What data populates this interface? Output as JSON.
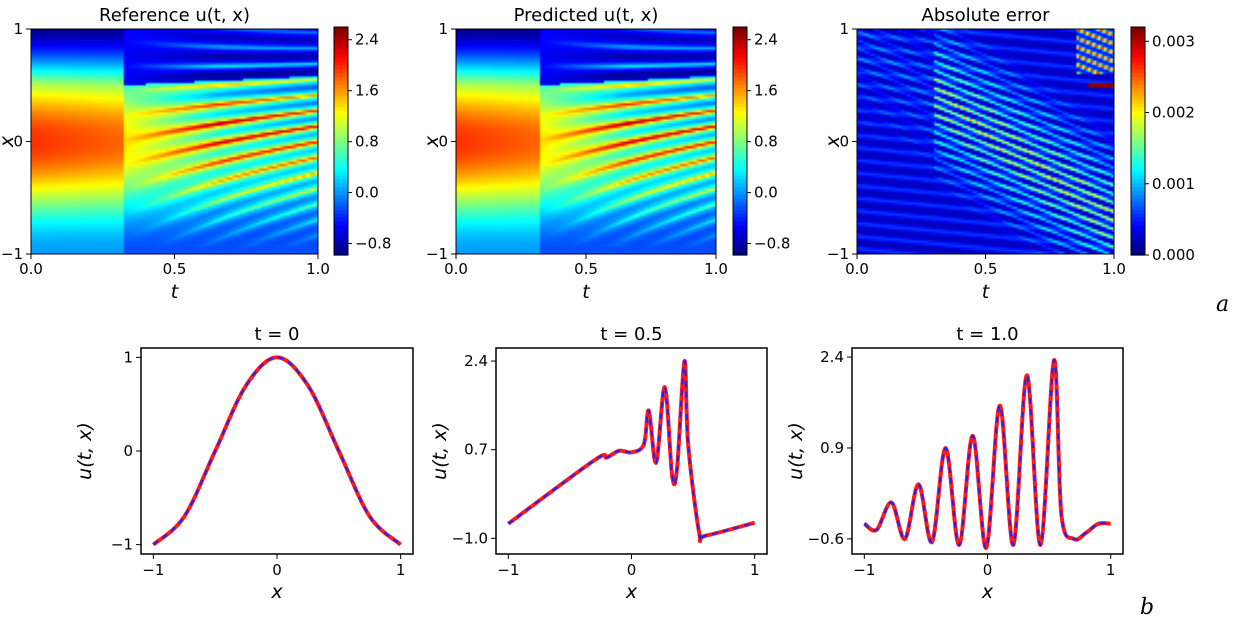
{
  "panel_labels": {
    "a": "a",
    "b": "b"
  },
  "colors": {
    "reference": "#ff1a1a",
    "predicted": "#1a22ff",
    "colormap": "jet"
  },
  "chart_data": [
    {
      "type": "heatmap",
      "title": "Reference u(t, x)",
      "xlabel": "t",
      "ylabel": "x",
      "xlim": [
        0.0,
        1.0
      ],
      "ylim": [
        -1,
        1
      ],
      "xticks": [
        "0.0",
        "0.5",
        "1.0"
      ],
      "yticks": [
        "−1",
        "0",
        "1"
      ],
      "colorbar": {
        "range": [
          -0.98,
          2.6
        ],
        "ticks": [
          "−0.8",
          "0.0",
          "0.8",
          "1.6",
          "2.4"
        ],
        "tick_values": [
          -0.8,
          0.0,
          0.8,
          1.6,
          2.4
        ]
      }
    },
    {
      "type": "heatmap",
      "title": "Predicted u(t, x)",
      "xlabel": "t",
      "ylabel": "x",
      "xlim": [
        0.0,
        1.0
      ],
      "ylim": [
        -1,
        1
      ],
      "xticks": [
        "0.0",
        "0.5",
        "1.0"
      ],
      "yticks": [
        "−1",
        "0",
        "1"
      ],
      "colorbar": {
        "range": [
          -0.98,
          2.6
        ],
        "ticks": [
          "−0.8",
          "0.0",
          "0.8",
          "1.6",
          "2.4"
        ],
        "tick_values": [
          -0.8,
          0.0,
          0.8,
          1.6,
          2.4
        ]
      }
    },
    {
      "type": "heatmap",
      "title": "Absolute error",
      "xlabel": "t",
      "ylabel": "x",
      "xlim": [
        0.0,
        1.0
      ],
      "ylim": [
        -1,
        1
      ],
      "xticks": [
        "0.0",
        "0.5",
        "1.0"
      ],
      "yticks": [
        "−1",
        "0",
        "1"
      ],
      "colorbar": {
        "range": [
          0.0,
          0.0032
        ],
        "ticks": [
          "0.000",
          "0.001",
          "0.002",
          "0.003"
        ],
        "tick_values": [
          0.0,
          0.001,
          0.002,
          0.003
        ]
      }
    },
    {
      "type": "line",
      "title": "t = 0",
      "xlabel": "x",
      "ylabel": "u(t, x)",
      "xlim": [
        -1.1,
        1.1
      ],
      "ylim": [
        -1.1,
        1.1
      ],
      "xticks": [
        "−1",
        "0",
        "1"
      ],
      "xtick_values": [
        -1,
        0,
        1
      ],
      "yticks": [
        "−1",
        "0",
        "1"
      ],
      "ytick_values": [
        -1,
        0,
        1
      ],
      "x": [
        -1.0,
        -0.75,
        -0.5,
        -0.25,
        0.0,
        0.25,
        0.5,
        0.75,
        1.0
      ],
      "series": [
        {
          "values": [
            -1.0,
            -0.7,
            0.0,
            0.7,
            1.0,
            0.7,
            0.0,
            -0.7,
            -1.0
          ]
        },
        {
          "values": [
            -1.0,
            -0.7,
            0.0,
            0.7,
            1.0,
            0.7,
            0.0,
            -0.7,
            -1.0
          ]
        }
      ]
    },
    {
      "type": "line",
      "title": "t = 0.5",
      "xlabel": "x",
      "ylabel": "u(t, x)",
      "xlim": [
        -1.1,
        1.1
      ],
      "ylim": [
        -1.3,
        2.65
      ],
      "xticks": [
        "−1",
        "0",
        "1"
      ],
      "xtick_values": [
        -1,
        0,
        1
      ],
      "yticks": [
        "2.4",
        "0.7",
        "−1.0"
      ],
      "ytick_values": [
        2.4,
        0.7,
        -1.0
      ],
      "x": [
        -1.0,
        -0.3,
        -0.2,
        -0.1,
        0.0,
        0.1,
        0.14,
        0.2,
        0.27,
        0.33,
        0.37,
        0.43,
        0.46,
        0.55,
        0.6,
        1.0
      ],
      "series": [
        {
          "values": [
            -0.72,
            0.5,
            0.55,
            0.68,
            0.65,
            0.8,
            1.45,
            0.45,
            1.9,
            0.2,
            0.35,
            2.4,
            0.8,
            -0.9,
            -0.95,
            -0.7
          ]
        },
        {
          "values": [
            -0.72,
            0.5,
            0.55,
            0.68,
            0.65,
            0.8,
            1.45,
            0.45,
            1.9,
            0.2,
            0.35,
            2.4,
            0.8,
            -0.9,
            -0.95,
            -0.7
          ]
        }
      ]
    },
    {
      "type": "line",
      "title": "t = 1.0",
      "xlabel": "x",
      "ylabel": "u(t, x)",
      "xlim": [
        -1.1,
        1.1
      ],
      "ylim": [
        -0.85,
        2.55
      ],
      "xticks": [
        "−1",
        "0",
        "1"
      ],
      "xtick_values": [
        -1,
        0,
        1
      ],
      "yticks": [
        "2.4",
        "0.9",
        "−0.6"
      ],
      "ytick_values": [
        2.4,
        0.9,
        -0.6
      ],
      "x": [
        -1.0,
        -0.9,
        -0.78,
        -0.67,
        -0.56,
        -0.45,
        -0.34,
        -0.23,
        -0.12,
        -0.01,
        0.1,
        0.21,
        0.32,
        0.43,
        0.54,
        0.6,
        0.7,
        0.8,
        0.9,
        1.0
      ],
      "series": [
        {
          "values": [
            -0.35,
            -0.45,
            0.0,
            -0.6,
            0.3,
            -0.65,
            0.9,
            -0.7,
            1.1,
            -0.75,
            1.6,
            -0.7,
            2.1,
            -0.7,
            2.35,
            -0.2,
            -0.6,
            -0.5,
            -0.35,
            -0.35
          ]
        },
        {
          "values": [
            -0.35,
            -0.45,
            0.0,
            -0.6,
            0.3,
            -0.65,
            0.9,
            -0.7,
            1.1,
            -0.75,
            1.6,
            -0.7,
            2.1,
            -0.7,
            2.35,
            -0.2,
            -0.6,
            -0.5,
            -0.35,
            -0.35
          ]
        }
      ]
    }
  ]
}
